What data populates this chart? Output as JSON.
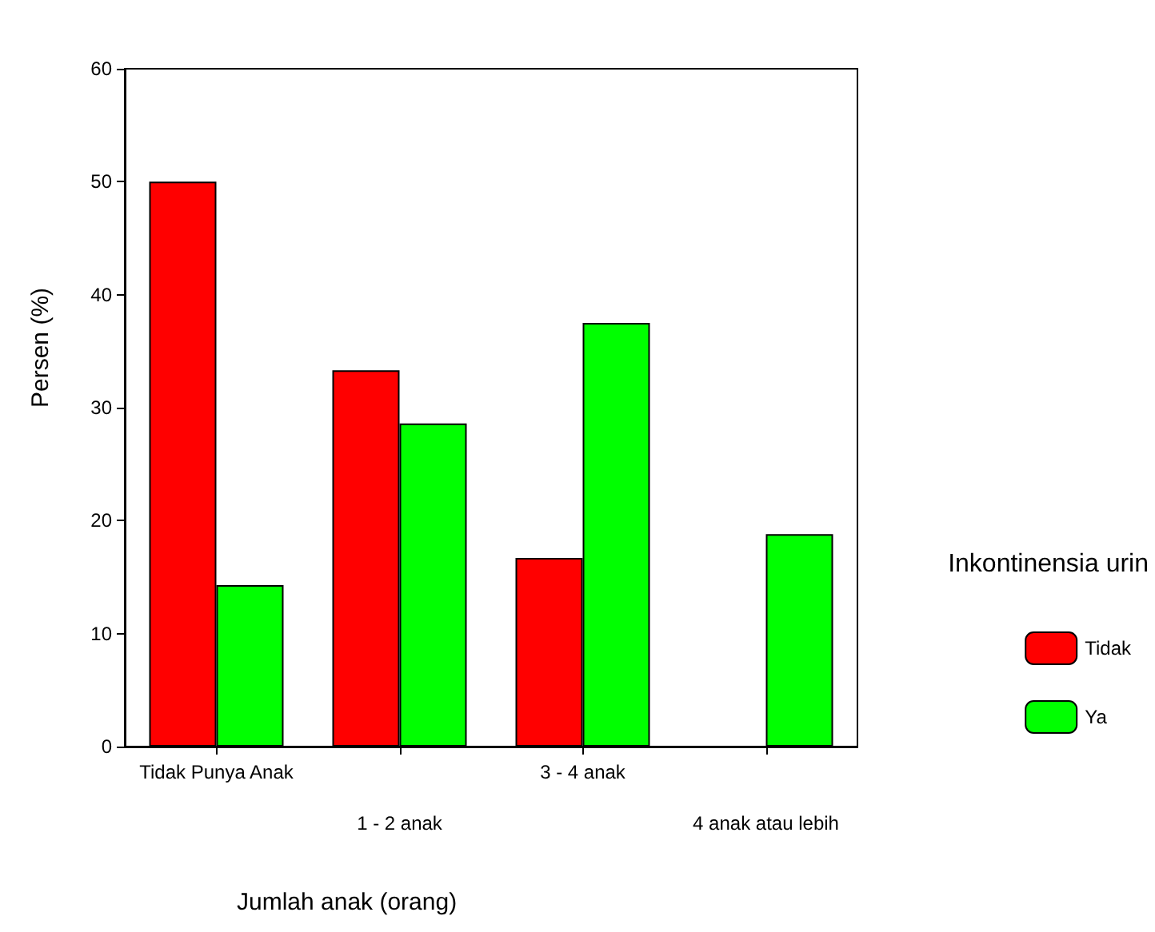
{
  "chart_data": {
    "type": "bar",
    "xlabel": "Jumlah anak (orang)",
    "ylabel": "Persen (%)",
    "legend_title": "Inkontinensia urin",
    "categories": [
      "Tidak Punya Anak",
      "1 - 2 anak",
      "3 - 4 anak",
      "4 anak atau lebih"
    ],
    "series": [
      {
        "name": "Tidak",
        "color": "#ff0000",
        "values": [
          50,
          33.3,
          16.7,
          null
        ]
      },
      {
        "name": "Ya",
        "color": "#00ff00",
        "values": [
          14.3,
          28.6,
          37.5,
          18.8
        ]
      }
    ],
    "ylim": [
      0,
      60
    ],
    "yticks": [
      0,
      10,
      20,
      30,
      40,
      50,
      60
    ],
    "grid": false,
    "legend": "right"
  }
}
